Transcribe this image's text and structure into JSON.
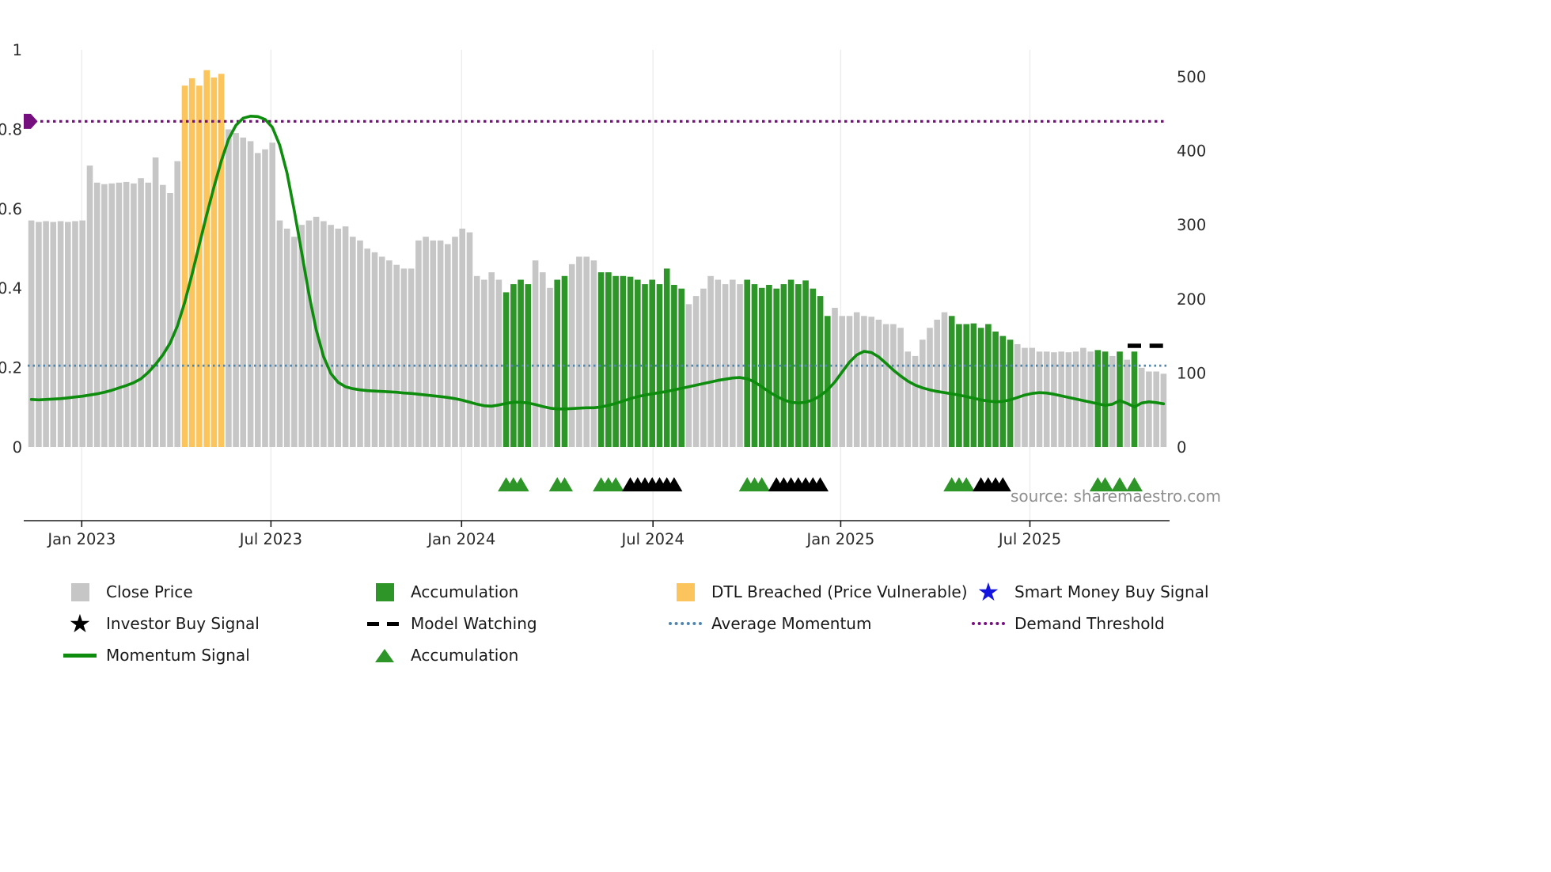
{
  "source_text": "source: sharemaestro.com",
  "chart_data": {
    "type": "bar+line",
    "x_tick_labels": [
      "Jan 2023",
      "Jul 2023",
      "Jan 2024",
      "Jul 2024",
      "Jan 2025",
      "Jul 2025"
    ],
    "x_tick_indices": [
      6.9,
      32.8,
      58.9,
      85.1,
      110.8,
      136.7
    ],
    "left_axis": {
      "ticks": [
        0,
        0.2,
        0.4,
        0.6,
        0.8,
        1
      ],
      "labels": [
        "0",
        "0.2",
        "0.4",
        "0.6",
        "0.8",
        "1"
      ],
      "ylim": [
        -0.19,
        1.0
      ]
    },
    "right_axis": {
      "ticks": [
        0,
        100,
        200,
        300,
        400,
        500
      ],
      "labels": [
        "0",
        "100",
        "200",
        "300",
        "400",
        "500"
      ],
      "max": 500
    },
    "bars": {
      "series_name": "Close Price (weekly)",
      "color_legend": {
        "0": "close_price",
        "1": "accumulation",
        "2": "dtl_breached"
      },
      "values": [
        306,
        304,
        305,
        304,
        305,
        304,
        305,
        306,
        380,
        357,
        355,
        356,
        357,
        358,
        356,
        363,
        357,
        391,
        354,
        343,
        386,
        488,
        498,
        488,
        509,
        499,
        504,
        429,
        424,
        418,
        413,
        397,
        402,
        411,
        306,
        295,
        284,
        300,
        306,
        311,
        305,
        300,
        295,
        298,
        284,
        279,
        268,
        263,
        257,
        252,
        246,
        241,
        241,
        279,
        284,
        279,
        279,
        274,
        284,
        295,
        290,
        231,
        226,
        236,
        226,
        209,
        220,
        226,
        220,
        252,
        236,
        215,
        226,
        231,
        247,
        257,
        257,
        252,
        236,
        236,
        231,
        231,
        230,
        226,
        220,
        226,
        220,
        241,
        219,
        214,
        193,
        204,
        214,
        231,
        226,
        220,
        226,
        220,
        226,
        220,
        215,
        219,
        214,
        220,
        226,
        220,
        225,
        214,
        204,
        177,
        188,
        177,
        177,
        182,
        177,
        176,
        172,
        166,
        166,
        161,
        129,
        123,
        145,
        161,
        172,
        182,
        177,
        166,
        166,
        167,
        161,
        166,
        156,
        150,
        145,
        139,
        134,
        134,
        129,
        129,
        128,
        129,
        128,
        129,
        134,
        129,
        131,
        129,
        123,
        129,
        118,
        129,
        107,
        102,
        102,
        99
      ],
      "color_codes": [
        0,
        0,
        0,
        0,
        0,
        0,
        0,
        0,
        0,
        0,
        0,
        0,
        0,
        0,
        0,
        0,
        0,
        0,
        0,
        0,
        0,
        2,
        2,
        2,
        2,
        2,
        2,
        0,
        0,
        0,
        0,
        0,
        0,
        0,
        0,
        0,
        0,
        0,
        0,
        0,
        0,
        0,
        0,
        0,
        0,
        0,
        0,
        0,
        0,
        0,
        0,
        0,
        0,
        0,
        0,
        0,
        0,
        0,
        0,
        0,
        0,
        0,
        0,
        0,
        0,
        1,
        1,
        1,
        1,
        0,
        0,
        0,
        1,
        1,
        0,
        0,
        0,
        0,
        1,
        1,
        1,
        1,
        1,
        1,
        1,
        1,
        1,
        1,
        1,
        1,
        0,
        0,
        0,
        0,
        0,
        0,
        0,
        0,
        1,
        1,
        1,
        1,
        1,
        1,
        1,
        1,
        1,
        1,
        1,
        1,
        0,
        0,
        0,
        0,
        0,
        0,
        0,
        0,
        0,
        0,
        0,
        0,
        0,
        0,
        0,
        0,
        1,
        1,
        1,
        1,
        1,
        1,
        1,
        1,
        1,
        0,
        0,
        0,
        0,
        0,
        0,
        0,
        0,
        0,
        0,
        0,
        1,
        1,
        0,
        1,
        0,
        1,
        0,
        0,
        0,
        0
      ]
    },
    "momentum_signal": [
      0.12,
      0.119,
      0.12,
      0.121,
      0.122,
      0.124,
      0.126,
      0.128,
      0.131,
      0.134,
      0.138,
      0.143,
      0.149,
      0.155,
      0.162,
      0.172,
      0.188,
      0.208,
      0.232,
      0.262,
      0.305,
      0.365,
      0.435,
      0.51,
      0.585,
      0.655,
      0.72,
      0.775,
      0.81,
      0.828,
      0.833,
      0.832,
      0.825,
      0.805,
      0.76,
      0.69,
      0.595,
      0.49,
      0.385,
      0.295,
      0.228,
      0.185,
      0.163,
      0.152,
      0.147,
      0.144,
      0.142,
      0.141,
      0.14,
      0.139,
      0.138,
      0.136,
      0.135,
      0.133,
      0.131,
      0.129,
      0.127,
      0.125,
      0.122,
      0.118,
      0.113,
      0.108,
      0.104,
      0.103,
      0.106,
      0.11,
      0.113,
      0.113,
      0.111,
      0.107,
      0.102,
      0.098,
      0.096,
      0.096,
      0.097,
      0.098,
      0.099,
      0.099,
      0.101,
      0.105,
      0.11,
      0.116,
      0.122,
      0.127,
      0.131,
      0.134,
      0.137,
      0.14,
      0.144,
      0.148,
      0.152,
      0.156,
      0.16,
      0.164,
      0.168,
      0.171,
      0.174,
      0.175,
      0.172,
      0.164,
      0.152,
      0.139,
      0.128,
      0.119,
      0.113,
      0.111,
      0.113,
      0.119,
      0.129,
      0.144,
      0.164,
      0.189,
      0.214,
      0.232,
      0.241,
      0.238,
      0.227,
      0.211,
      0.194,
      0.179,
      0.166,
      0.156,
      0.149,
      0.144,
      0.14,
      0.137,
      0.134,
      0.131,
      0.127,
      0.123,
      0.119,
      0.116,
      0.114,
      0.115,
      0.119,
      0.125,
      0.131,
      0.135,
      0.137,
      0.136,
      0.133,
      0.129,
      0.125,
      0.121,
      0.117,
      0.113,
      0.109,
      0.105,
      0.108,
      0.117,
      0.11,
      0.101,
      0.111,
      0.114,
      0.112,
      0.109
    ],
    "average_momentum": 0.205,
    "demand_threshold": 0.82,
    "model_watching": {
      "indices": [
        151,
        154
      ],
      "value": 0.255
    },
    "accumulation_marker_indices": [
      65,
      66,
      67,
      72,
      73,
      78,
      79,
      80,
      98,
      99,
      100,
      126,
      127,
      128,
      146,
      147,
      149,
      151
    ],
    "investor_buy_marker_indices": [
      82,
      83,
      84,
      85,
      86,
      87,
      88,
      102,
      103,
      104,
      105,
      106,
      107,
      108,
      130,
      131,
      132,
      133
    ],
    "colors": {
      "close_price": "#c6c6c6",
      "accumulation": "#2e9528",
      "dtl_breached": "#fbc45c",
      "momentum_line": "#0e8c0e",
      "average_momentum": "#4f86b0",
      "demand_threshold": "#760f7e",
      "investor_marker": "#000000",
      "smart_money": "#1414e0",
      "tick_label": "#2b2b2b",
      "axis_line": "#1a1a1a",
      "gridline": "#ebebeb",
      "source_text": "#8f8f8f"
    }
  },
  "legend": {
    "items": [
      {
        "label": "Close Price",
        "swatch": "square",
        "color": "close_price"
      },
      {
        "label": "Accumulation",
        "swatch": "square",
        "color": "accumulation"
      },
      {
        "label": "DTL Breached (Price Vulnerable)",
        "swatch": "square",
        "color": "dtl_breached"
      },
      {
        "label": "Smart Money Buy Signal",
        "swatch": "star",
        "color": "smart_money"
      },
      {
        "label": "Investor Buy Signal",
        "swatch": "star",
        "color": "investor_marker"
      },
      {
        "label": "Model Watching",
        "swatch": "dashes",
        "color": "investor_marker"
      },
      {
        "label": "Average Momentum",
        "swatch": "dotted",
        "color": "average_momentum"
      },
      {
        "label": "Demand Threshold",
        "swatch": "dotted",
        "color": "demand_threshold"
      },
      {
        "label": "Momentum Signal",
        "swatch": "line",
        "color": "momentum_line"
      },
      {
        "label": "Accumulation",
        "swatch": "triangle",
        "color": "accumulation"
      }
    ]
  }
}
